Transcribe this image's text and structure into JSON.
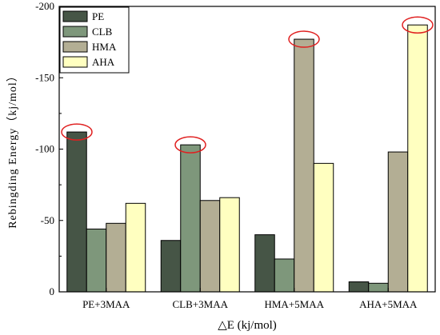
{
  "chart_data": {
    "type": "bar",
    "categories": [
      "PE+3MAA",
      "CLB+3MAA",
      "HMA+5MAA",
      "AHA+5MAA"
    ],
    "series": [
      {
        "name": "PE",
        "color": "#465546",
        "values": [
          -112,
          -36,
          -40,
          -7
        ]
      },
      {
        "name": "CLB",
        "color": "#7e977b",
        "values": [
          -44,
          -103,
          -23,
          -6
        ]
      },
      {
        "name": "HMA",
        "color": "#b3ae94",
        "values": [
          -48,
          -64,
          -177,
          -98
        ]
      },
      {
        "name": "AHA",
        "color": "#ffffc0",
        "values": [
          -62,
          -66,
          -90,
          -187
        ]
      }
    ],
    "highlighted": [
      {
        "category": "PE+3MAA",
        "series": "PE"
      },
      {
        "category": "CLB+3MAA",
        "series": "CLB"
      },
      {
        "category": "HMA+5MAA",
        "series": "HMA"
      },
      {
        "category": "AHA+5MAA",
        "series": "AHA"
      }
    ],
    "highlight_color": "#e02020",
    "title": "",
    "xlabel": "△E (kj/mol)",
    "ylabel": "Rebingding Energy（kj/mol）",
    "ylim": [
      0,
      -200
    ],
    "yticks": [
      0,
      -50,
      -100,
      -150,
      -200
    ],
    "y_axis_direction": "inverted",
    "grid": false,
    "legend_position": "top-left"
  }
}
